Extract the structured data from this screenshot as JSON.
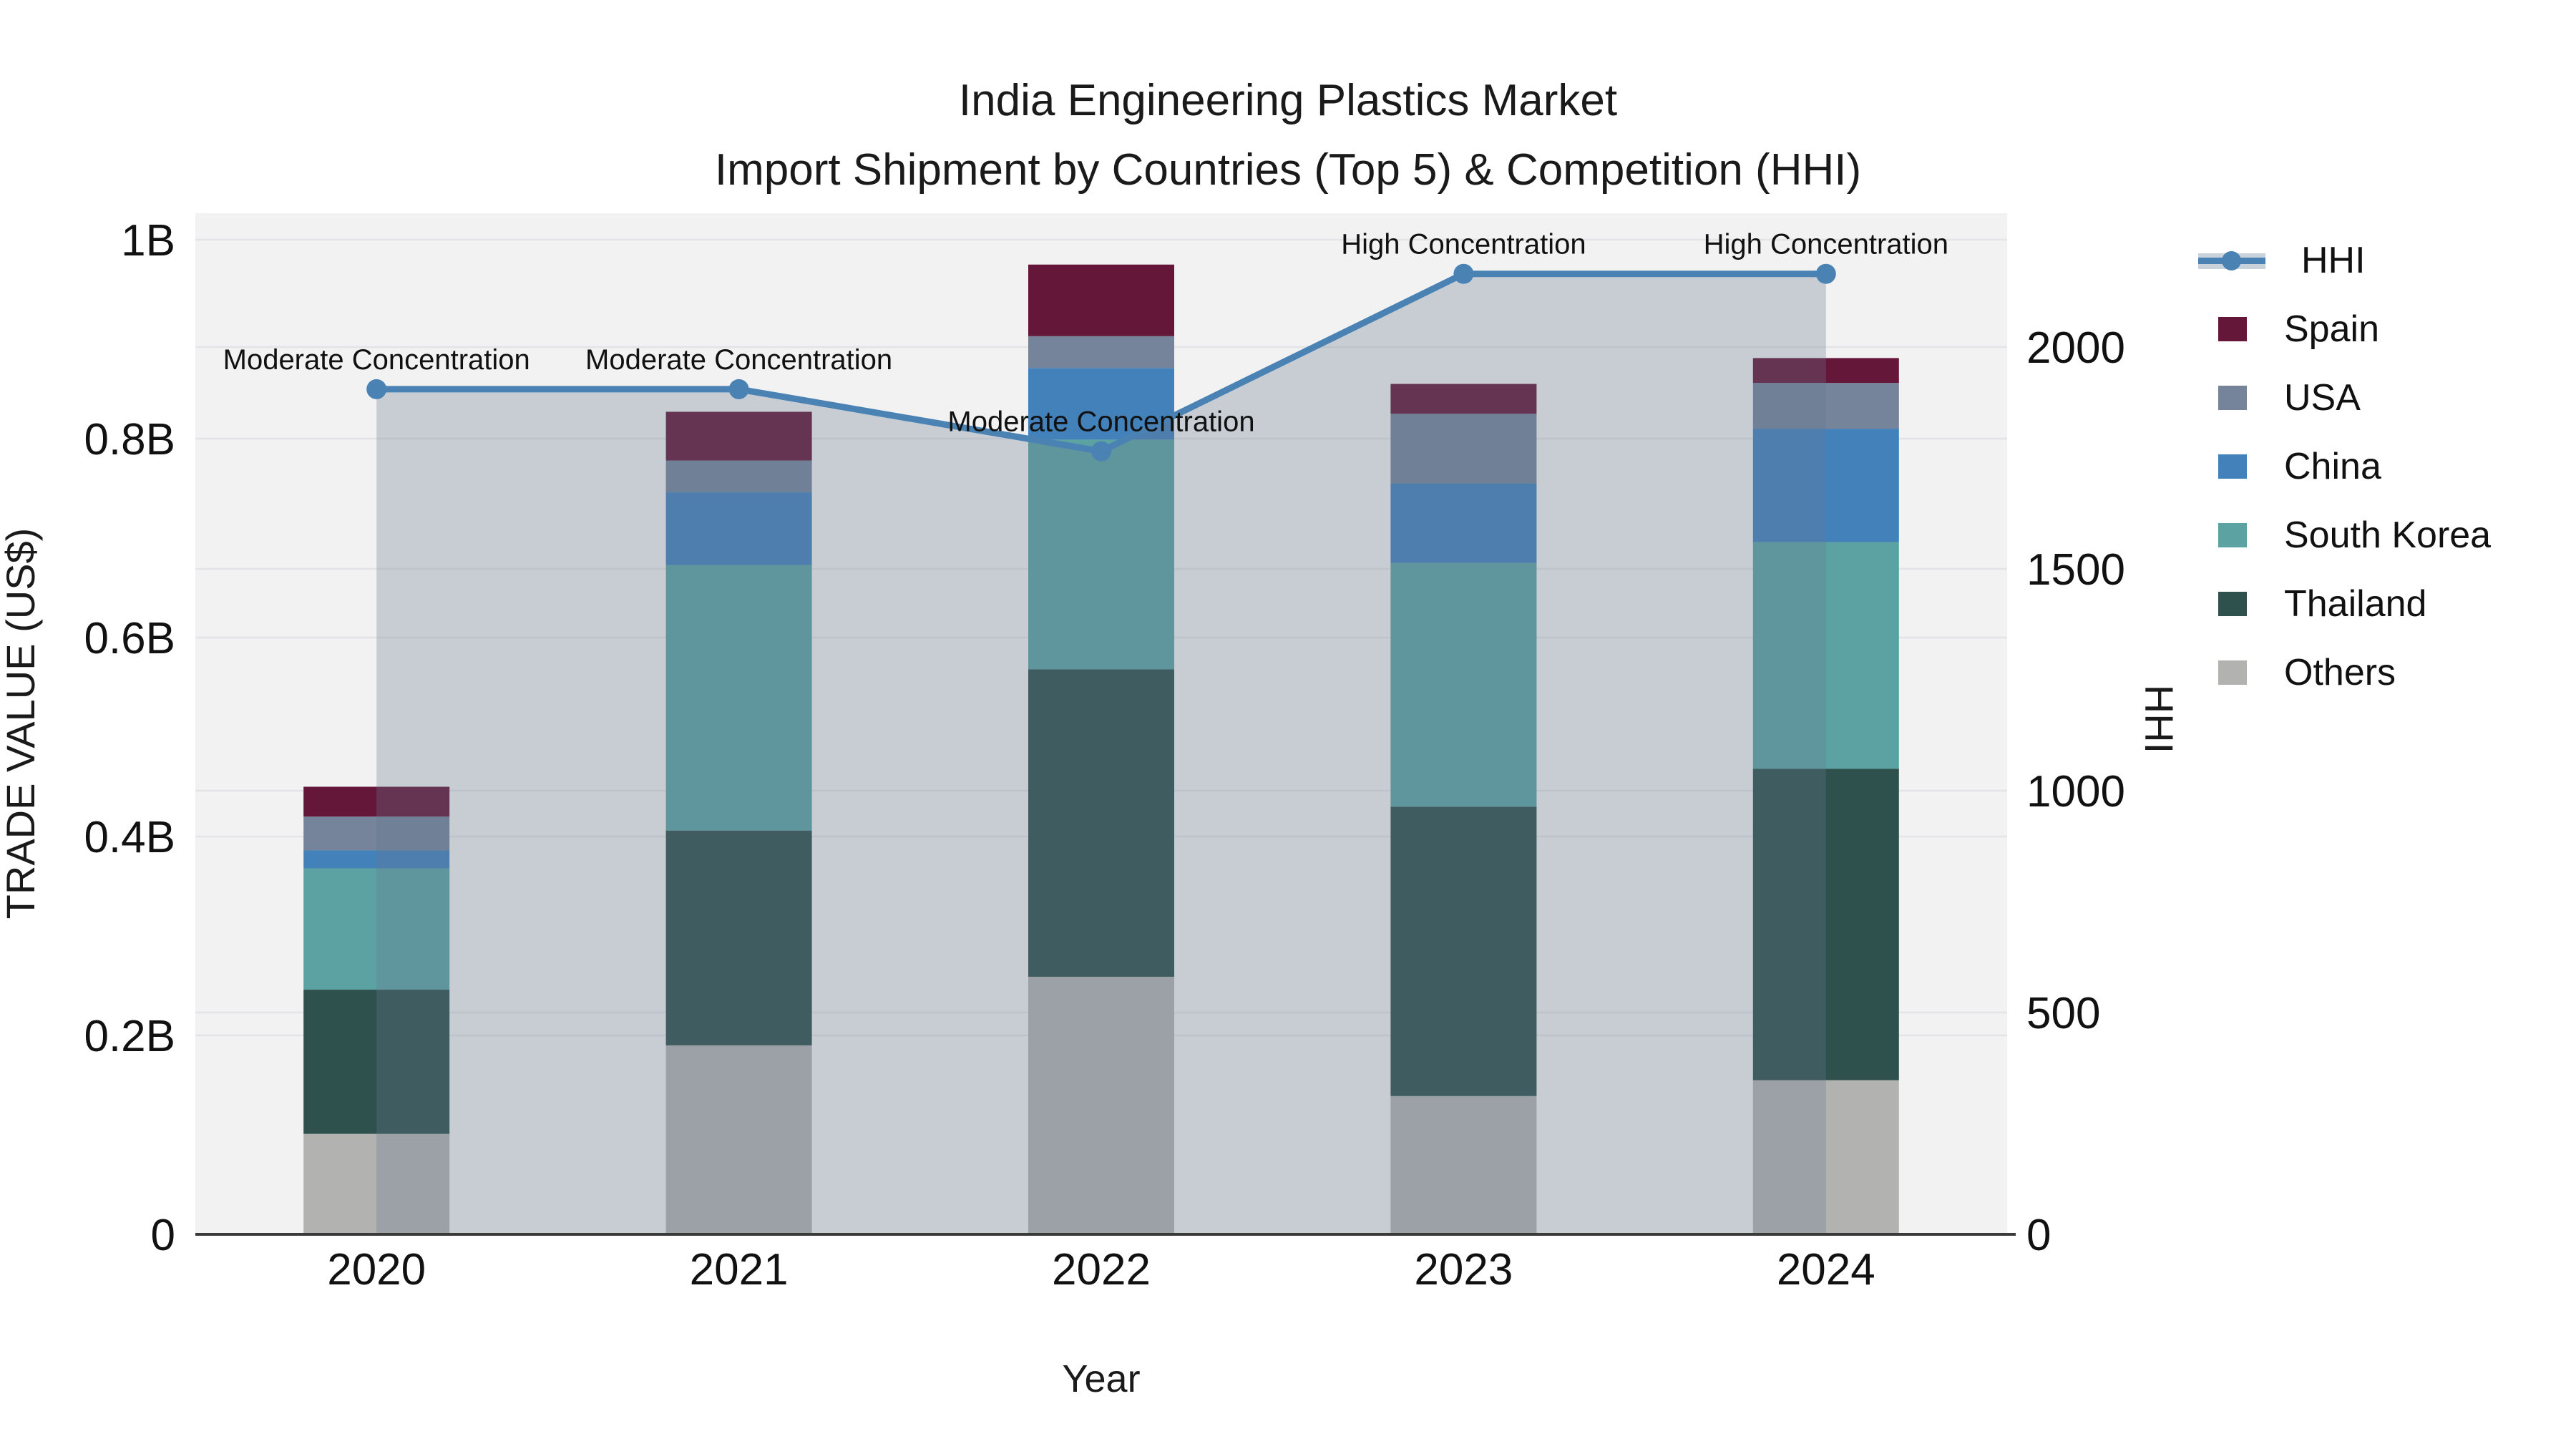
{
  "title": {
    "line1": "India Engineering Plastics Market",
    "line2": "Import Shipment by Countries (Top 5) & Competition (HHI)"
  },
  "chart_data": {
    "type": "bar",
    "subtype": "stacked-bar-with-line-dual-axis",
    "categories": [
      "2020",
      "2021",
      "2022",
      "2023",
      "2024"
    ],
    "series": [
      {
        "name": "Others",
        "color": "#B2B3B1",
        "values": [
          0.101,
          0.19,
          0.259,
          0.139,
          0.155
        ]
      },
      {
        "name": "Thailand",
        "color": "#2F514E",
        "values": [
          0.145,
          0.216,
          0.309,
          0.291,
          0.313
        ]
      },
      {
        "name": "South Korea",
        "color": "#5CA2A2",
        "values": [
          0.122,
          0.267,
          0.231,
          0.245,
          0.228
        ]
      },
      {
        "name": "China",
        "color": "#4381BB",
        "values": [
          0.018,
          0.073,
          0.072,
          0.08,
          0.114
        ]
      },
      {
        "name": "USA",
        "color": "#75849B",
        "values": [
          0.034,
          0.032,
          0.032,
          0.07,
          0.046
        ]
      },
      {
        "name": "Spain",
        "color": "#65173A",
        "values": [
          0.03,
          0.049,
          0.072,
          0.03,
          0.025
        ]
      }
    ],
    "bar_totals_billions": [
      0.45,
      0.827,
      0.975,
      0.855,
      0.881
    ],
    "line_series": {
      "name": "HHI",
      "color": "#4A82B4",
      "area_fill": "rgba(104,119,143,0.30)",
      "values": [
        1905,
        1905,
        1765,
        2165,
        2165
      ]
    },
    "annotations": [
      {
        "x": "2020",
        "text": "Moderate Concentration"
      },
      {
        "x": "2021",
        "text": "Moderate Concentration"
      },
      {
        "x": "2022",
        "text": "Moderate Concentration"
      },
      {
        "x": "2023",
        "text": "High Concentration"
      },
      {
        "x": "2024",
        "text": "High Concentration"
      }
    ],
    "axes": {
      "x": {
        "label": "Year"
      },
      "left": {
        "label": "TRADE VALUE (US$)",
        "max_billions": 1.027,
        "ticks": [
          {
            "value": 0,
            "label": "0"
          },
          {
            "value": 0.2,
            "label": "0.2B"
          },
          {
            "value": 0.4,
            "label": "0.4B"
          },
          {
            "value": 0.6,
            "label": "0.6B"
          },
          {
            "value": 0.8,
            "label": "0.8B"
          },
          {
            "value": 1.0,
            "label": "1B"
          }
        ]
      },
      "right": {
        "label": "HHI",
        "max": 2300,
        "ticks": [
          {
            "value": 0,
            "label": "0"
          },
          {
            "value": 500,
            "label": "500"
          },
          {
            "value": 1000,
            "label": "1000"
          },
          {
            "value": 1500,
            "label": "1500"
          },
          {
            "value": 2000,
            "label": "2000"
          }
        ]
      }
    },
    "grid": "horizontal",
    "legend_position": "right-outside"
  },
  "legend": [
    {
      "label": "HHI",
      "color": "#4A82B4",
      "band": "#C9D1DB",
      "type": "line"
    },
    {
      "label": "Spain",
      "color": "#65173A",
      "type": "patch"
    },
    {
      "label": "USA",
      "color": "#75849B",
      "type": "patch"
    },
    {
      "label": "China",
      "color": "#4381BB",
      "type": "patch"
    },
    {
      "label": "South Korea",
      "color": "#5CA2A2",
      "type": "patch"
    },
    {
      "label": "Thailand",
      "color": "#2F514E",
      "type": "patch"
    },
    {
      "label": "Others",
      "color": "#B2B3B1",
      "type": "patch"
    }
  ],
  "colors": {
    "plot_background": "#F2F2F3",
    "figure_background": "#FFFFFF",
    "gridline": "#E4E4E6",
    "axis_line": "#3A3A3A",
    "text": "#1A1A1A"
  }
}
